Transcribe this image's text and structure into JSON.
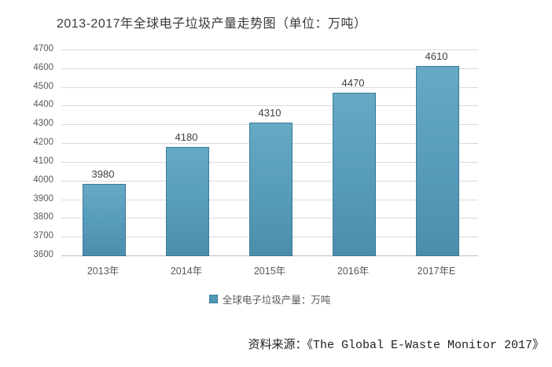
{
  "title": "2013-2017年全球电子垃圾产量走势图（单位：万吨）",
  "chart_data": {
    "type": "bar",
    "title": "2013-2017年全球电子垃圾产量走势图（单位：万吨）",
    "categories": [
      "2013年",
      "2014年",
      "2015年",
      "2016年",
      "2017年E"
    ],
    "values": [
      3980,
      4180,
      4310,
      4470,
      4610
    ],
    "series_name": "全球电子垃圾产量：万吨",
    "xlabel": "",
    "ylabel": "",
    "ylim": [
      3600,
      4700
    ],
    "yticks": [
      3600,
      3700,
      3800,
      3900,
      4000,
      4100,
      4200,
      4300,
      4400,
      4500,
      4600,
      4700
    ],
    "grid": true,
    "data_labels": true,
    "legend_position": "bottom",
    "bar_fill_color": "#579cba",
    "bar_border_color": "#3a7b98",
    "gridline_color": "#d9d9d9",
    "axis_label_color": "#595959"
  },
  "legend": {
    "label": "全球电子垃圾产量：万吨",
    "marker_color": "#4f97b5"
  },
  "source": {
    "text": "资料来源：《The Global E-Waste Monitor 2017》"
  }
}
